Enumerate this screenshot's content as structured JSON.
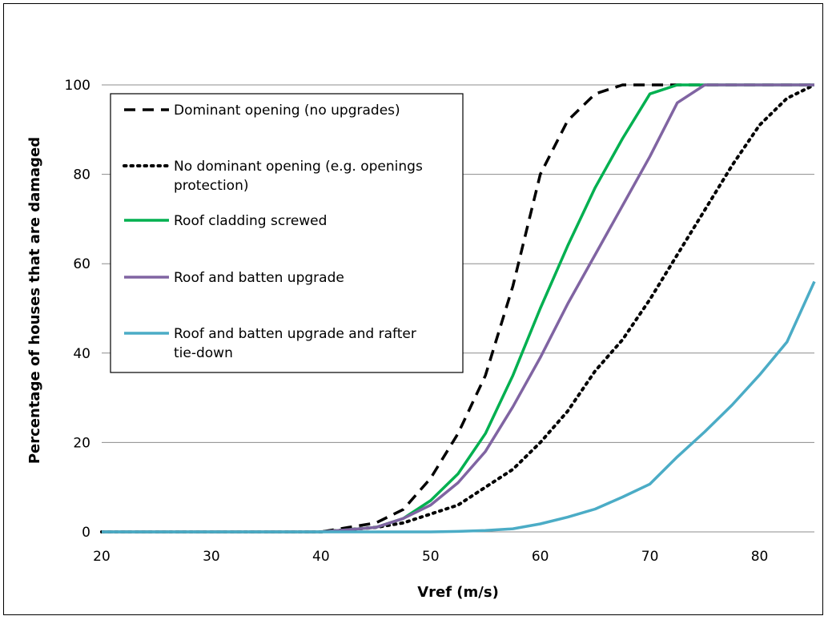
{
  "chart_data": {
    "type": "line",
    "title": "",
    "xlabel": "Vref (m/s)",
    "ylabel": "Percentage of houses that are damaged",
    "xlim": [
      20,
      85
    ],
    "ylim": [
      0,
      100
    ],
    "xticks": [
      20,
      30,
      40,
      50,
      60,
      70,
      80
    ],
    "yticks": [
      0,
      20,
      40,
      60,
      80,
      100
    ],
    "grid": "horizontal",
    "legend_position": "top-left",
    "series": [
      {
        "name": "Dominant opening (no upgrades)",
        "color": "#000000",
        "style": "dashed",
        "x": [
          20,
          40,
          42.5,
          45,
          47.5,
          50,
          52.5,
          55,
          57.5,
          60,
          62.5,
          65,
          67.5,
          70,
          72.5,
          75,
          77.5,
          80,
          82.5,
          85
        ],
        "y": [
          0,
          0,
          1,
          2,
          5,
          12,
          22,
          35,
          55,
          80,
          92,
          98,
          100,
          100,
          100,
          100,
          100,
          100,
          100,
          100
        ]
      },
      {
        "name": "No dominant opening (e.g. openings protection)",
        "color": "#000000",
        "style": "dotted",
        "x": [
          20,
          40,
          42.5,
          45,
          47.5,
          50,
          52.5,
          55,
          57.5,
          60,
          62.5,
          65,
          67.5,
          70,
          72.5,
          75,
          77.5,
          80,
          82.5,
          85
        ],
        "y": [
          0,
          0,
          0.5,
          1,
          2,
          4,
          6,
          10,
          14,
          20,
          27,
          36,
          43,
          52,
          62,
          72,
          82,
          91,
          97,
          100
        ]
      },
      {
        "name": "Roof cladding screwed",
        "color": "#00b050",
        "style": "solid",
        "x": [
          20,
          40,
          42.5,
          45,
          47.5,
          50,
          52.5,
          55,
          57.5,
          60,
          62.5,
          65,
          67.5,
          70,
          72.5,
          75,
          77.5,
          80,
          82.5,
          85
        ],
        "y": [
          0,
          0,
          0.5,
          1,
          3,
          7,
          13,
          22,
          35,
          50,
          64,
          77,
          88,
          98,
          100,
          100,
          100,
          100,
          100,
          100
        ]
      },
      {
        "name": "Roof and batten upgrade",
        "color": "#8064a2",
        "style": "solid",
        "x": [
          20,
          40,
          42.5,
          45,
          47.5,
          50,
          52.5,
          55,
          57.5,
          60,
          62.5,
          65,
          67.5,
          70,
          72.5,
          75,
          77.5,
          80,
          82.5,
          85
        ],
        "y": [
          0,
          0,
          0.5,
          1,
          3,
          6,
          11,
          18,
          28,
          39,
          51,
          62,
          73,
          84,
          96,
          100,
          100,
          100,
          100,
          100
        ]
      },
      {
        "name": "Roof and batten upgrade and rafter tie-down",
        "color": "#4bacc6",
        "style": "solid",
        "x": [
          20,
          40,
          42.5,
          45,
          47.5,
          50,
          52.5,
          55,
          57.5,
          60,
          62.5,
          65,
          67.5,
          70,
          72.5,
          75,
          77.5,
          80,
          82.5,
          85
        ],
        "y": [
          0,
          0,
          0,
          0,
          0,
          0,
          0.1,
          0.3,
          0.7,
          1.8,
          3.3,
          5.1,
          7.8,
          10.7,
          16.8,
          22.4,
          28.4,
          35.1,
          42.5,
          56
        ]
      }
    ]
  }
}
